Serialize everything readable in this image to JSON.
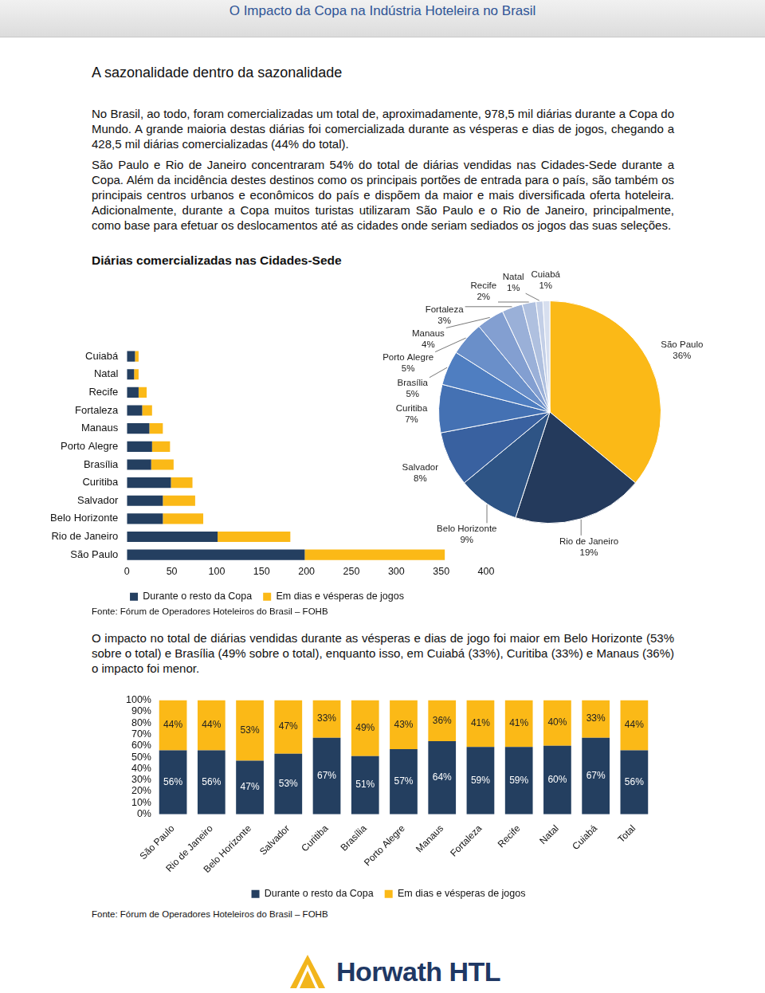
{
  "header": {
    "title": "O Impacto da Copa na Indústria Hoteleira no Brasil"
  },
  "section_title": "A sazonalidade dentro da sazonalidade",
  "paragraphs": [
    "No Brasil, ao todo, foram comercializadas um total de, aproximadamente, 978,5 mil diárias durante a Copa do Mundo. A grande maioria destas diárias foi comercializada durante as vésperas e dias de jogos, chegando a 428,5 mil diárias comercializadas (44% do total).",
    "São Paulo e Rio de Janeiro concentraram 54% do total de diárias vendidas nas Cidades-Sede durante a Copa. Além da incidência destes destinos como os principais portões de entrada para o país, são também os principais centros urbanos e econômicos do país e dispõem da maior e mais diversificada oferta hoteleira. Adicionalmente, durante a Copa muitos turistas utilizaram São Paulo e o Rio de Janeiro, principalmente, como base para efetuar os deslocamentos até as cidades onde seriam sediados os jogos das suas seleções.",
    "O impacto no total de diárias vendidas durante as vésperas e dias de jogo foi maior em Belo Horizonte (53% sobre o total) e Brasília (49% sobre o total), enquanto isso, em Cuiabá (33%), Curitiba (33%) e Manaus (36%) o impacto foi menor."
  ],
  "chart_data": [
    {
      "type": "bar",
      "title": "Diárias comercializadas nas Cidades-Sede",
      "orientation": "horizontal",
      "stacked": true,
      "grid": false,
      "legend": "bottom",
      "data_labels": false,
      "categories": [
        "Cuiabá",
        "Natal",
        "Recife",
        "Fortaleza",
        "Manaus",
        "Porto Alegre",
        "Brasília",
        "Curitiba",
        "Salvador",
        "Belo Horizonte",
        "Rio de Janeiro",
        "São Paulo"
      ],
      "series": [
        {
          "name": "Durante o resto da Copa",
          "color": "#243F60",
          "values": [
            9,
            8,
            13,
            17,
            25,
            28,
            27,
            49,
            40,
            40,
            101,
            198
          ]
        },
        {
          "name": "Em dias e vésperas de jogos",
          "color": "#FBB917",
          "values": [
            4,
            5,
            9,
            11,
            15,
            20,
            25,
            24,
            36,
            45,
            81,
            156
          ]
        }
      ],
      "xlim": [
        0,
        400
      ],
      "xticks": [
        0,
        50,
        100,
        150,
        200,
        250,
        300,
        350,
        400
      ]
    },
    {
      "type": "pie",
      "data_labels": true,
      "categories": [
        "São Paulo",
        "Rio de Janeiro",
        "Belo Horizonte",
        "Salvador",
        "Curitiba",
        "Brasília",
        "Porto Alegre",
        "Manaus",
        "Fortaleza",
        "Recife",
        "Natal",
        "Cuiabá"
      ],
      "values": [
        36,
        19,
        9,
        8,
        7,
        5,
        5,
        4,
        3,
        2,
        1,
        1
      ],
      "value_labels": [
        "36%",
        "19%",
        "9%",
        "8%",
        "7%",
        "5%",
        "5%",
        "4%",
        "3%",
        "2%",
        "1%",
        "1%"
      ],
      "colors": [
        "#FBB917",
        "#243A5C",
        "#2E5485",
        "#3961A0",
        "#4471B3",
        "#4F7EC1",
        "#6A8FC9",
        "#839FD1",
        "#9AB0D8",
        "#AFC0DF",
        "#C3CFE7",
        "#D7DFEF"
      ]
    },
    {
      "type": "bar",
      "stacked": true,
      "grid": false,
      "legend": "bottom",
      "data_labels": true,
      "categories": [
        "São Paulo",
        "Rio de Janeiro",
        "Belo Horizonte",
        "Salvador",
        "Curitiba",
        "Brasília",
        "Porto Alegre",
        "Manaus",
        "Fortaleza",
        "Recife",
        "Natal",
        "Cuiabá",
        "Total"
      ],
      "series": [
        {
          "name": "Durante o resto da Copa",
          "color": "#243F60",
          "values": [
            56,
            56,
            47,
            53,
            67,
            51,
            57,
            64,
            59,
            59,
            60,
            67,
            56
          ],
          "value_labels": [
            "56%",
            "56%",
            "47%",
            "53%",
            "67%",
            "51%",
            "57%",
            "64%",
            "59%",
            "59%",
            "60%",
            "67%",
            "56%"
          ]
        },
        {
          "name": "Em dias e vésperas de jogos",
          "color": "#FBB917",
          "values": [
            44,
            44,
            53,
            47,
            33,
            49,
            43,
            36,
            41,
            41,
            40,
            33,
            44
          ],
          "value_labels": [
            "44%",
            "44%",
            "53%",
            "47%",
            "33%",
            "49%",
            "43%",
            "36%",
            "41%",
            "41%",
            "40%",
            "33%",
            "44%"
          ]
        }
      ],
      "ylim": [
        0,
        100
      ],
      "yticks": [
        {
          "value": 0,
          "label": "0%"
        },
        {
          "value": 10,
          "label": "10%"
        },
        {
          "value": 20,
          "label": "20%"
        },
        {
          "value": 30,
          "label": "30%"
        },
        {
          "value": 40,
          "label": "40%"
        },
        {
          "value": 50,
          "label": "50%"
        },
        {
          "value": 60,
          "label": "60%"
        },
        {
          "value": 70,
          "label": "70%"
        },
        {
          "value": 80,
          "label": "80%"
        },
        {
          "value": 90,
          "label": "90%"
        },
        {
          "value": 100,
          "label": "100%"
        }
      ]
    }
  ],
  "sources": [
    "Fonte: Fórum de Operadores Hoteleiros do Brasil – FOHB",
    "Fonte: Fórum de Operadores Hoteleiros do Brasil – FOHB"
  ],
  "footer": {
    "logo": "Horwath HTL"
  }
}
